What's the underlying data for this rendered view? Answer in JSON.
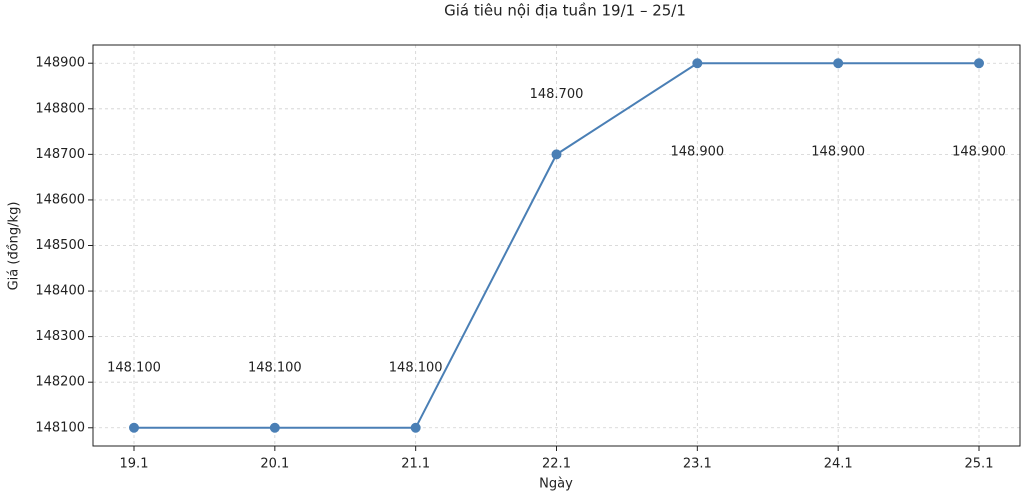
{
  "chart_data": {
    "type": "line",
    "title": "Giá tiêu nội địa tuần 19/1 – 25/1",
    "x_label": "Ngày",
    "y_label": "Giá (đồng/kg)",
    "categories": [
      "19.1",
      "20.1",
      "21.1",
      "22.1",
      "23.1",
      "24.1",
      "25.1"
    ],
    "series": [
      {
        "name": "Giá tiêu",
        "color": "#4a7fb5",
        "values": [
          148100,
          148100,
          148100,
          148700,
          148900,
          148900,
          148900
        ],
        "value_labels": [
          "148.100",
          "148.100",
          "148.100",
          "148.700",
          "148.900",
          "148.900",
          "148.900"
        ]
      }
    ],
    "ylim": [
      148060,
      148940
    ],
    "yticks": [
      148100,
      148200,
      148300,
      148400,
      148500,
      148600,
      148700,
      148800,
      148900
    ],
    "grid": true
  }
}
